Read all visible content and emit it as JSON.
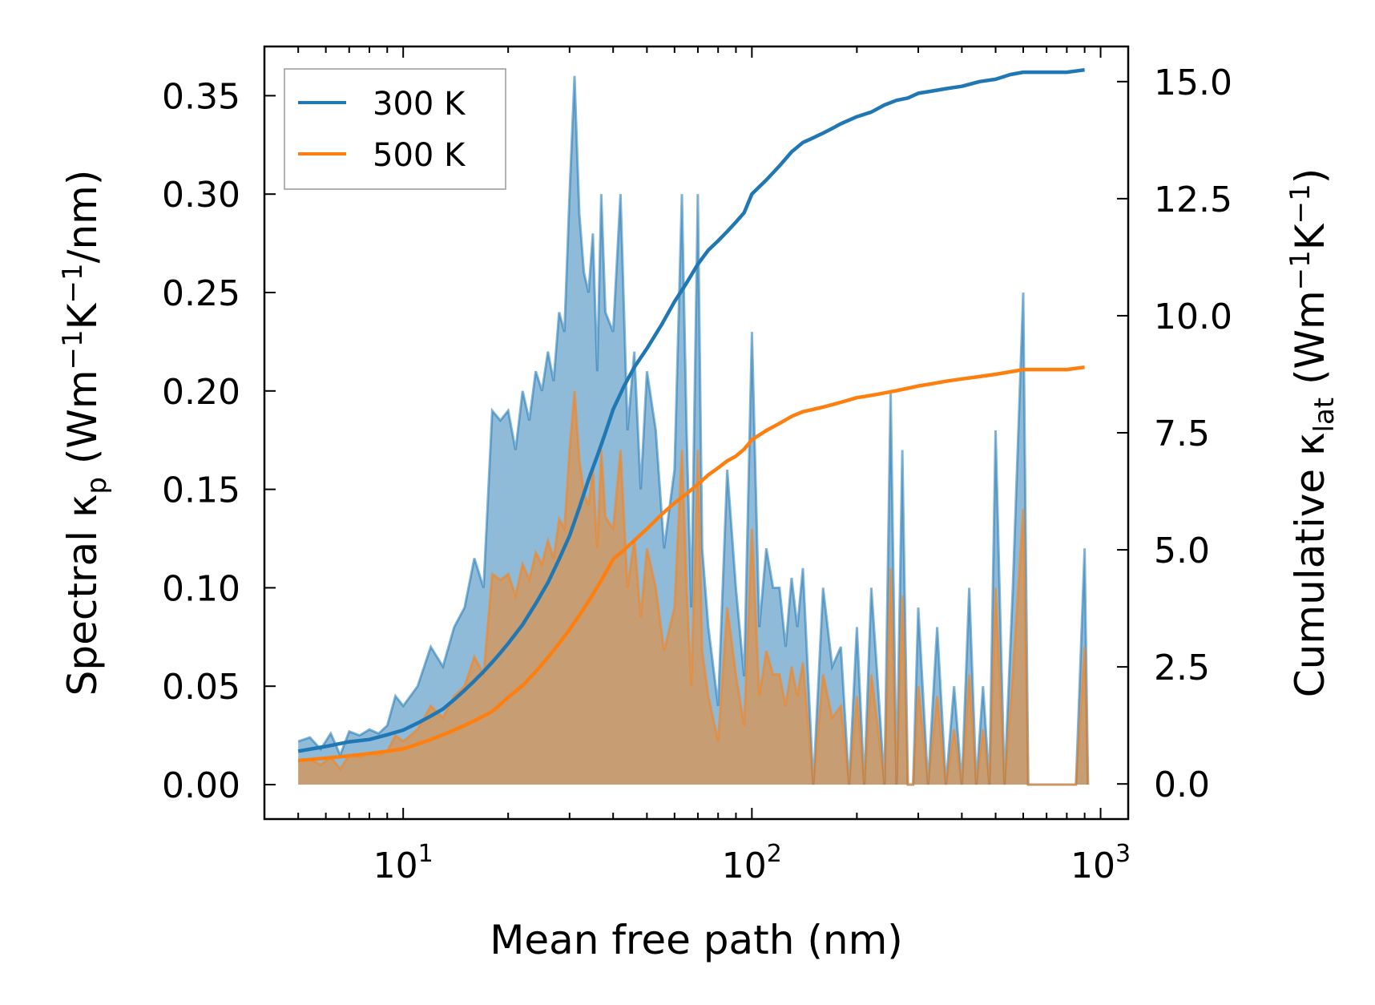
{
  "chart_data": {
    "type": "line",
    "xscale": "log",
    "xlabel": "Mean free path (nm)",
    "ylabel_left": {
      "prefix": "Spectral κ",
      "sub": "p",
      "unit_open": " (Wm",
      "sup1": "−1",
      "mid": "K",
      "sup2": "−1",
      "unit_close": "/nm)"
    },
    "ylabel_right": {
      "prefix": "Cumulative κ",
      "sub": "lat",
      "unit_open": " (Wm",
      "sup1": "−1",
      "mid": "K",
      "sup2": "−1",
      "unit_close": ")"
    },
    "xlim": [
      4.0,
      1200
    ],
    "ylim_left": [
      -0.0175,
      0.375
    ],
    "ylim_right": [
      -0.75,
      15.75
    ],
    "xticks": [
      {
        "value": 10,
        "base": "10",
        "exp": "1"
      },
      {
        "value": 100,
        "base": "10",
        "exp": "2"
      },
      {
        "value": 1000,
        "base": "10",
        "exp": "3"
      }
    ],
    "yticks_left": [
      {
        "value": 0.0,
        "label": "0.00"
      },
      {
        "value": 0.05,
        "label": "0.05"
      },
      {
        "value": 0.1,
        "label": "0.10"
      },
      {
        "value": 0.15,
        "label": "0.15"
      },
      {
        "value": 0.2,
        "label": "0.20"
      },
      {
        "value": 0.25,
        "label": "0.25"
      },
      {
        "value": 0.3,
        "label": "0.30"
      },
      {
        "value": 0.35,
        "label": "0.35"
      }
    ],
    "yticks_right": [
      {
        "value": 0.0,
        "label": "0.0"
      },
      {
        "value": 2.5,
        "label": "2.5"
      },
      {
        "value": 5.0,
        "label": "5.0"
      },
      {
        "value": 7.5,
        "label": "7.5"
      },
      {
        "value": 10.0,
        "label": "10.0"
      },
      {
        "value": 12.5,
        "label": "12.5"
      },
      {
        "value": 15.0,
        "label": "15.0"
      }
    ],
    "legend": {
      "position": "top-left",
      "entries": [
        {
          "label": "300 K",
          "color": "#1f77b4"
        },
        {
          "label": "500 K",
          "color": "#ff7f0e"
        }
      ]
    },
    "series": [
      {
        "name": "300 K",
        "color": "#1f77b4",
        "spectral": {
          "x": [
            5,
            5.4,
            5.8,
            6.2,
            6.6,
            7,
            7.5,
            8,
            8.5,
            9,
            9.5,
            10,
            11,
            12,
            13,
            14,
            15,
            16,
            17,
            18,
            19,
            20,
            21,
            22,
            23,
            24,
            25,
            26,
            27,
            28,
            29,
            30,
            31,
            32,
            33,
            34,
            35,
            36,
            37,
            38,
            40,
            42,
            44,
            46,
            48,
            50,
            53,
            56,
            60,
            63,
            65,
            67,
            70,
            72,
            75,
            80,
            85,
            90,
            95,
            100,
            105,
            110,
            115,
            120,
            125,
            130,
            135,
            140,
            150,
            160,
            170,
            180,
            190,
            200,
            210,
            220,
            230,
            240,
            250,
            260,
            270,
            280,
            290,
            300,
            320,
            340,
            360,
            380,
            400,
            420,
            440,
            460,
            480,
            500,
            530,
            560,
            600,
            620,
            650,
            700,
            800,
            850,
            900,
            920
          ],
          "y": [
            0.022,
            0.024,
            0.018,
            0.026,
            0.015,
            0.027,
            0.025,
            0.028,
            0.026,
            0.03,
            0.045,
            0.04,
            0.05,
            0.07,
            0.06,
            0.08,
            0.09,
            0.115,
            0.1,
            0.19,
            0.185,
            0.19,
            0.17,
            0.2,
            0.185,
            0.21,
            0.2,
            0.22,
            0.205,
            0.24,
            0.23,
            0.3,
            0.36,
            0.29,
            0.26,
            0.25,
            0.28,
            0.21,
            0.3,
            0.24,
            0.23,
            0.3,
            0.18,
            0.22,
            0.15,
            0.21,
            0.18,
            0.12,
            0.16,
            0.3,
            0.18,
            0.09,
            0.3,
            0.12,
            0.08,
            0.04,
            0.16,
            0.1,
            0.055,
            0.23,
            0.08,
            0.12,
            0.1,
            0.1,
            0.07,
            0.105,
            0.08,
            0.11,
            0.0,
            0.1,
            0.06,
            0.07,
            0.0,
            0.08,
            0.0,
            0.1,
            0.05,
            0.0,
            0.2,
            0.0,
            0.17,
            0.0,
            0.0,
            0.09,
            0.0,
            0.08,
            0.0,
            0.05,
            0.0,
            0.1,
            0.0,
            0.05,
            0.0,
            0.18,
            0.0,
            0.1,
            0.25,
            0.0,
            0.0,
            0.0,
            0.0,
            0.0,
            0.12,
            0.0
          ]
        },
        "cumulative": {
          "x": [
            5,
            6,
            7,
            8,
            9,
            10,
            11,
            12,
            13,
            14,
            15,
            16,
            17,
            18,
            19,
            20,
            22,
            24,
            26,
            28,
            30,
            32,
            34,
            36,
            38,
            40,
            43,
            46,
            50,
            55,
            60,
            65,
            70,
            75,
            80,
            85,
            90,
            95,
            100,
            110,
            120,
            130,
            140,
            150,
            160,
            170,
            180,
            200,
            220,
            240,
            260,
            280,
            300,
            330,
            360,
            400,
            450,
            500,
            550,
            600,
            650,
            700,
            800,
            900
          ],
          "y": [
            0.7,
            0.8,
            0.9,
            0.95,
            1.05,
            1.15,
            1.3,
            1.45,
            1.6,
            1.8,
            2.0,
            2.2,
            2.4,
            2.6,
            2.8,
            3.0,
            3.4,
            3.85,
            4.3,
            4.8,
            5.3,
            5.9,
            6.5,
            7.0,
            7.5,
            8.0,
            8.5,
            8.9,
            9.3,
            9.8,
            10.3,
            10.7,
            11.1,
            11.4,
            11.6,
            11.8,
            12.0,
            12.2,
            12.6,
            12.9,
            13.2,
            13.5,
            13.7,
            13.8,
            13.9,
            14.0,
            14.1,
            14.25,
            14.35,
            14.5,
            14.6,
            14.65,
            14.75,
            14.8,
            14.85,
            14.9,
            15.0,
            15.05,
            15.15,
            15.2,
            15.2,
            15.2,
            15.2,
            15.25
          ]
        }
      },
      {
        "name": "500 K",
        "color": "#ff7f0e",
        "spectral": {
          "x": [
            5,
            5.4,
            5.8,
            6.2,
            6.6,
            7,
            7.5,
            8,
            8.5,
            9,
            9.5,
            10,
            11,
            12,
            13,
            14,
            15,
            16,
            17,
            18,
            19,
            20,
            21,
            22,
            23,
            24,
            25,
            26,
            27,
            28,
            29,
            30,
            31,
            32,
            33,
            34,
            35,
            36,
            37,
            38,
            40,
            42,
            44,
            46,
            48,
            50,
            53,
            56,
            60,
            63,
            65,
            67,
            70,
            72,
            75,
            80,
            85,
            90,
            95,
            100,
            105,
            110,
            115,
            120,
            125,
            130,
            135,
            140,
            150,
            160,
            170,
            180,
            190,
            200,
            210,
            220,
            230,
            240,
            250,
            260,
            270,
            280,
            290,
            300,
            320,
            340,
            360,
            380,
            400,
            420,
            440,
            460,
            480,
            500,
            530,
            560,
            600,
            620,
            650,
            700,
            800,
            850,
            900,
            920
          ],
          "y": [
            0.012,
            0.013,
            0.01,
            0.014,
            0.008,
            0.015,
            0.014,
            0.016,
            0.015,
            0.017,
            0.025,
            0.022,
            0.028,
            0.04,
            0.034,
            0.045,
            0.05,
            0.065,
            0.056,
            0.107,
            0.104,
            0.107,
            0.096,
            0.112,
            0.104,
            0.118,
            0.112,
            0.124,
            0.115,
            0.135,
            0.13,
            0.17,
            0.2,
            0.165,
            0.148,
            0.142,
            0.16,
            0.12,
            0.17,
            0.136,
            0.13,
            0.17,
            0.1,
            0.125,
            0.085,
            0.12,
            0.1,
            0.068,
            0.09,
            0.17,
            0.1,
            0.05,
            0.17,
            0.068,
            0.045,
            0.022,
            0.09,
            0.056,
            0.03,
            0.13,
            0.045,
            0.068,
            0.056,
            0.056,
            0.04,
            0.06,
            0.045,
            0.062,
            0.0,
            0.056,
            0.034,
            0.04,
            0.0,
            0.045,
            0.0,
            0.056,
            0.028,
            0.0,
            0.11,
            0.0,
            0.096,
            0.0,
            0.0,
            0.05,
            0.0,
            0.045,
            0.0,
            0.028,
            0.0,
            0.056,
            0.0,
            0.028,
            0.0,
            0.1,
            0.0,
            0.056,
            0.14,
            0.0,
            0.0,
            0.0,
            0.0,
            0.0,
            0.07,
            0.0
          ]
        },
        "cumulative": {
          "x": [
            5,
            6,
            7,
            8,
            9,
            10,
            11,
            12,
            13,
            14,
            15,
            16,
            17,
            18,
            19,
            20,
            22,
            24,
            26,
            28,
            30,
            32,
            34,
            36,
            38,
            40,
            43,
            46,
            50,
            55,
            60,
            65,
            70,
            75,
            80,
            85,
            90,
            95,
            100,
            110,
            120,
            130,
            140,
            150,
            160,
            170,
            180,
            200,
            220,
            240,
            260,
            280,
            300,
            330,
            360,
            400,
            450,
            500,
            550,
            600,
            650,
            700,
            800,
            900
          ],
          "y": [
            0.5,
            0.55,
            0.6,
            0.65,
            0.7,
            0.75,
            0.85,
            0.95,
            1.05,
            1.15,
            1.25,
            1.35,
            1.45,
            1.55,
            1.7,
            1.85,
            2.1,
            2.4,
            2.7,
            3.0,
            3.3,
            3.6,
            3.9,
            4.2,
            4.5,
            4.8,
            5.0,
            5.2,
            5.45,
            5.75,
            6.0,
            6.2,
            6.4,
            6.6,
            6.75,
            6.9,
            7.0,
            7.15,
            7.35,
            7.55,
            7.7,
            7.85,
            7.95,
            8.0,
            8.05,
            8.1,
            8.15,
            8.25,
            8.3,
            8.35,
            8.4,
            8.45,
            8.5,
            8.55,
            8.6,
            8.65,
            8.7,
            8.75,
            8.8,
            8.85,
            8.85,
            8.85,
            8.85,
            8.9
          ]
        }
      }
    ]
  }
}
